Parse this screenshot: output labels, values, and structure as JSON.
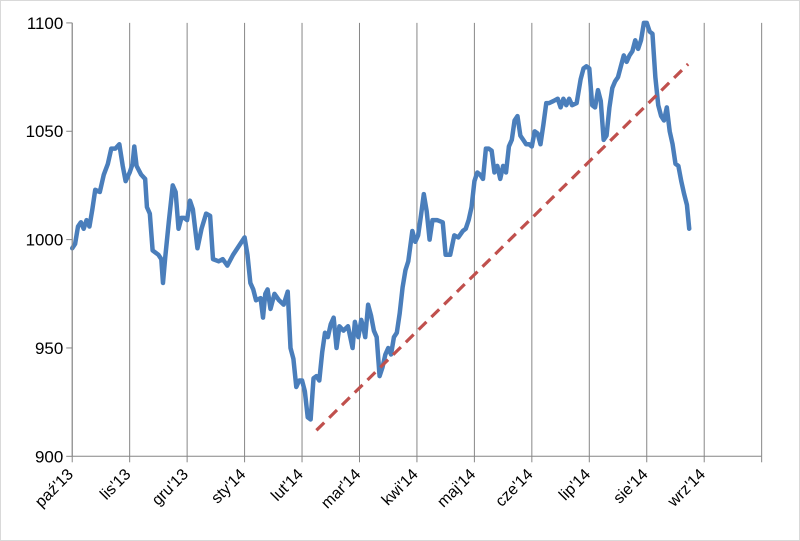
{
  "chart_data": {
    "type": "line",
    "title": "",
    "xlabel": "",
    "ylabel": "",
    "ylim": [
      900,
      1100
    ],
    "yticks": [
      900,
      950,
      1000,
      1050,
      1100
    ],
    "grid": "vertical",
    "legend": "none",
    "x_range": [
      0,
      12
    ],
    "categories": [
      "paź'13",
      "lis'13",
      "gru'13",
      "sty'14",
      "lut'14",
      "mar'14",
      "kwi'14",
      "maj'14",
      "cze'14",
      "lip'14",
      "sie'14",
      "wrz'14"
    ],
    "series": [
      {
        "color": "#4a7ebb",
        "style": "solid",
        "points": [
          [
            0.0,
            996
          ],
          [
            0.05,
            998
          ],
          [
            0.1,
            1006
          ],
          [
            0.15,
            1008
          ],
          [
            0.2,
            1005
          ],
          [
            0.25,
            1009
          ],
          [
            0.3,
            1006
          ],
          [
            0.35,
            1014
          ],
          [
            0.4,
            1023
          ],
          [
            0.48,
            1022
          ],
          [
            0.55,
            1030
          ],
          [
            0.62,
            1035
          ],
          [
            0.68,
            1042
          ],
          [
            0.75,
            1042
          ],
          [
            0.82,
            1044
          ],
          [
            0.88,
            1034
          ],
          [
            0.93,
            1027
          ],
          [
            1.0,
            1031
          ],
          [
            1.05,
            1035
          ],
          [
            1.08,
            1043
          ],
          [
            1.12,
            1034
          ],
          [
            1.2,
            1030
          ],
          [
            1.27,
            1028
          ],
          [
            1.3,
            1015
          ],
          [
            1.35,
            1012
          ],
          [
            1.4,
            995
          ],
          [
            1.5,
            993
          ],
          [
            1.55,
            991
          ],
          [
            1.58,
            980
          ],
          [
            1.62,
            992
          ],
          [
            1.68,
            1008
          ],
          [
            1.75,
            1025
          ],
          [
            1.8,
            1022
          ],
          [
            1.85,
            1005
          ],
          [
            1.9,
            1010
          ],
          [
            1.95,
            1010
          ],
          [
            2.0,
            1009
          ],
          [
            2.05,
            1018
          ],
          [
            2.1,
            1014
          ],
          [
            2.18,
            996
          ],
          [
            2.25,
            1005
          ],
          [
            2.33,
            1012
          ],
          [
            2.4,
            1011
          ],
          [
            2.45,
            991
          ],
          [
            2.55,
            990
          ],
          [
            2.62,
            991
          ],
          [
            2.7,
            988
          ],
          [
            2.8,
            993
          ],
          [
            2.9,
            997
          ],
          [
            3.0,
            1001
          ],
          [
            3.05,
            993
          ],
          [
            3.1,
            980
          ],
          [
            3.15,
            977
          ],
          [
            3.2,
            972
          ],
          [
            3.28,
            973
          ],
          [
            3.32,
            964
          ],
          [
            3.36,
            975
          ],
          [
            3.4,
            977
          ],
          [
            3.45,
            968
          ],
          [
            3.52,
            975
          ],
          [
            3.6,
            972
          ],
          [
            3.68,
            970
          ],
          [
            3.75,
            976
          ],
          [
            3.8,
            950
          ],
          [
            3.85,
            945
          ],
          [
            3.9,
            932
          ],
          [
            3.95,
            935
          ],
          [
            4.0,
            935
          ],
          [
            4.05,
            930
          ],
          [
            4.1,
            918
          ],
          [
            4.15,
            917
          ],
          [
            4.2,
            936
          ],
          [
            4.25,
            937
          ],
          [
            4.3,
            935
          ],
          [
            4.35,
            948
          ],
          [
            4.4,
            957
          ],
          [
            4.45,
            955
          ],
          [
            4.5,
            961
          ],
          [
            4.55,
            964
          ],
          [
            4.6,
            950
          ],
          [
            4.65,
            960
          ],
          [
            4.72,
            958
          ],
          [
            4.8,
            960
          ],
          [
            4.88,
            950
          ],
          [
            4.92,
            962
          ],
          [
            4.98,
            955
          ],
          [
            5.03,
            963
          ],
          [
            5.07,
            959
          ],
          [
            5.1,
            955
          ],
          [
            5.15,
            970
          ],
          [
            5.2,
            965
          ],
          [
            5.25,
            958
          ],
          [
            5.3,
            955
          ],
          [
            5.35,
            937
          ],
          [
            5.4,
            941
          ],
          [
            5.45,
            947
          ],
          [
            5.5,
            950
          ],
          [
            5.55,
            947
          ],
          [
            5.6,
            955
          ],
          [
            5.65,
            957
          ],
          [
            5.7,
            966
          ],
          [
            5.75,
            978
          ],
          [
            5.8,
            986
          ],
          [
            5.85,
            990
          ],
          [
            5.92,
            1004
          ],
          [
            5.97,
            999
          ],
          [
            6.02,
            1002
          ],
          [
            6.07,
            1011
          ],
          [
            6.12,
            1021
          ],
          [
            6.17,
            1013
          ],
          [
            6.22,
            1000
          ],
          [
            6.27,
            1009
          ],
          [
            6.35,
            1009
          ],
          [
            6.45,
            1008
          ],
          [
            6.5,
            993
          ],
          [
            6.58,
            993
          ],
          [
            6.65,
            1002
          ],
          [
            6.72,
            1001
          ],
          [
            6.8,
            1004
          ],
          [
            6.85,
            1005
          ],
          [
            6.9,
            1009
          ],
          [
            6.95,
            1015
          ],
          [
            7.0,
            1027
          ],
          [
            7.05,
            1031
          ],
          [
            7.1,
            1030
          ],
          [
            7.15,
            1028
          ],
          [
            7.2,
            1042
          ],
          [
            7.25,
            1042
          ],
          [
            7.3,
            1041
          ],
          [
            7.35,
            1031
          ],
          [
            7.4,
            1034
          ],
          [
            7.45,
            1028
          ],
          [
            7.5,
            1034
          ],
          [
            7.55,
            1031
          ],
          [
            7.6,
            1043
          ],
          [
            7.65,
            1046
          ],
          [
            7.7,
            1055
          ],
          [
            7.75,
            1057
          ],
          [
            7.8,
            1048
          ],
          [
            7.85,
            1046
          ],
          [
            7.9,
            1044
          ],
          [
            7.95,
            1044
          ],
          [
            8.0,
            1043
          ],
          [
            8.05,
            1050
          ],
          [
            8.1,
            1049
          ],
          [
            8.15,
            1044
          ],
          [
            8.2,
            1053
          ],
          [
            8.25,
            1063
          ],
          [
            8.3,
            1063
          ],
          [
            8.38,
            1064
          ],
          [
            8.45,
            1065
          ],
          [
            8.5,
            1061
          ],
          [
            8.55,
            1065
          ],
          [
            8.6,
            1062
          ],
          [
            8.65,
            1065
          ],
          [
            8.7,
            1062
          ],
          [
            8.78,
            1063
          ],
          [
            8.85,
            1074
          ],
          [
            8.9,
            1079
          ],
          [
            8.95,
            1080
          ],
          [
            9.0,
            1079
          ],
          [
            9.05,
            1062
          ],
          [
            9.1,
            1061
          ],
          [
            9.15,
            1069
          ],
          [
            9.2,
            1064
          ],
          [
            9.25,
            1046
          ],
          [
            9.3,
            1048
          ],
          [
            9.35,
            1061
          ],
          [
            9.4,
            1070
          ],
          [
            9.45,
            1073
          ],
          [
            9.5,
            1075
          ],
          [
            9.55,
            1080
          ],
          [
            9.6,
            1085
          ],
          [
            9.65,
            1082
          ],
          [
            9.7,
            1085
          ],
          [
            9.75,
            1087
          ],
          [
            9.8,
            1092
          ],
          [
            9.85,
            1088
          ],
          [
            9.9,
            1092
          ],
          [
            9.95,
            1100
          ],
          [
            10.0,
            1100
          ],
          [
            10.05,
            1096
          ],
          [
            10.1,
            1095
          ],
          [
            10.15,
            1075
          ],
          [
            10.2,
            1062
          ],
          [
            10.25,
            1057
          ],
          [
            10.3,
            1055
          ],
          [
            10.35,
            1061
          ],
          [
            10.4,
            1050
          ],
          [
            10.45,
            1044
          ],
          [
            10.5,
            1035
          ],
          [
            10.55,
            1034
          ],
          [
            10.6,
            1027
          ],
          [
            10.65,
            1021
          ],
          [
            10.7,
            1016
          ],
          [
            10.74,
            1005
          ]
        ]
      },
      {
        "color": "#c0504d",
        "style": "dashed",
        "points": [
          [
            4.25,
            912
          ],
          [
            10.72,
            1081
          ]
        ]
      }
    ]
  }
}
